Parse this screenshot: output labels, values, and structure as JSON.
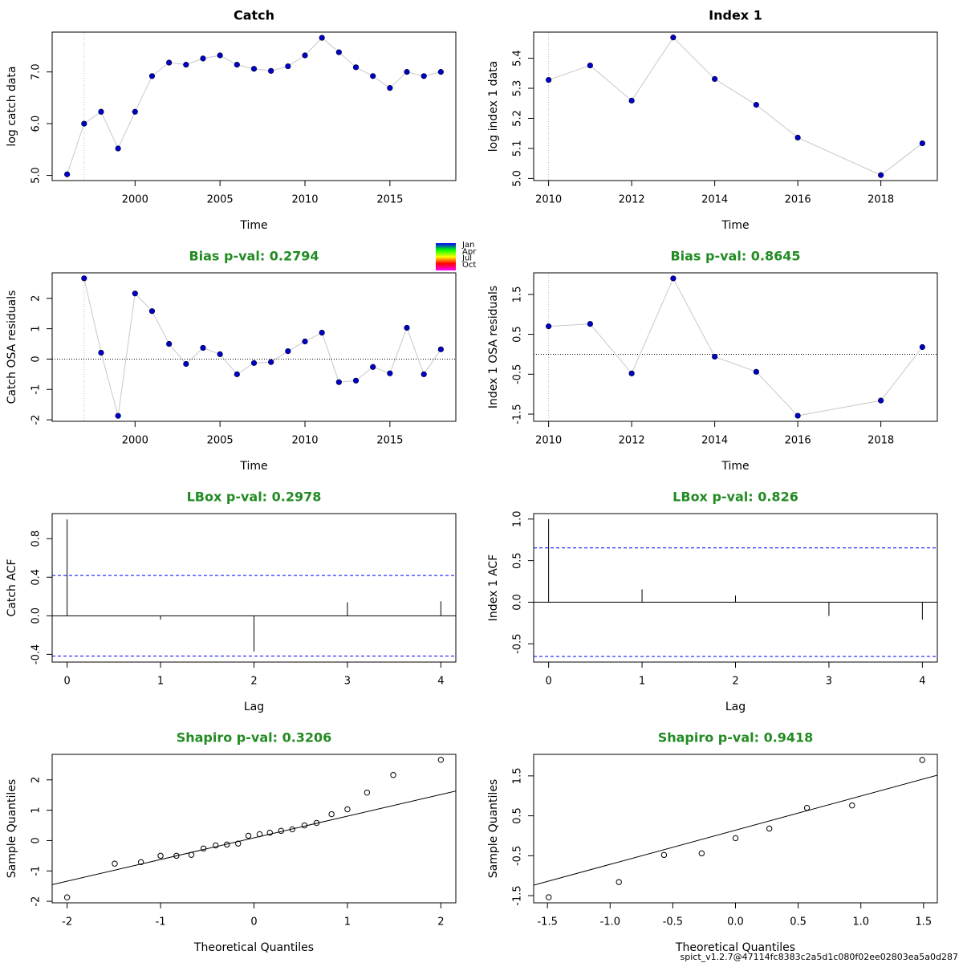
{
  "chart_data": [
    {
      "type": "line",
      "title": "Catch",
      "title_color": "#000000",
      "xlabel": "Time",
      "ylabel": "log catch data",
      "x": [
        1996,
        1997,
        1998,
        1999,
        2000,
        2001,
        2002,
        2003,
        2004,
        2005,
        2006,
        2007,
        2008,
        2009,
        2010,
        2011,
        2012,
        2013,
        2014,
        2015,
        2016,
        2017,
        2018
      ],
      "values": [
        5.02,
        6.0,
        6.23,
        5.52,
        6.23,
        6.92,
        7.18,
        7.14,
        7.26,
        7.32,
        7.14,
        7.06,
        7.02,
        7.11,
        7.32,
        7.66,
        7.38,
        7.09,
        6.92,
        6.69,
        7.0,
        6.92,
        7.0
      ],
      "color": "#0000cd",
      "line_color": "#c8c8c8",
      "vline": 1997,
      "xlim": [
        1995.12,
        2018.88
      ],
      "xticks": [
        2000,
        2005,
        2010,
        2015
      ],
      "ylim": [
        4.9,
        7.77
      ],
      "yticks": [
        {
          "value": 5,
          "label": "5.0"
        },
        {
          "value": 6,
          "label": "6.0"
        },
        {
          "value": 7,
          "label": "7.0"
        }
      ]
    },
    {
      "type": "line",
      "title": "Index 1",
      "title_color": "#000000",
      "xlabel": "Time",
      "ylabel": "log index 1 data",
      "x": [
        2010,
        2011,
        2012,
        2013,
        2014,
        2015,
        2016,
        2018,
        2019
      ],
      "values": [
        5.328,
        5.376,
        5.259,
        5.469,
        5.331,
        5.245,
        5.136,
        5.011,
        5.117
      ],
      "color": "#0000cd",
      "line_color": "#c8c8c8",
      "vline": 2010,
      "xlim": [
        2009.64,
        2019.36
      ],
      "xticks": [
        2010,
        2012,
        2014,
        2016,
        2018
      ],
      "ylim": [
        4.993,
        5.487
      ],
      "yticks": [
        {
          "value": 5,
          "label": "5.0"
        },
        5.1,
        5.2,
        5.3,
        5.4
      ]
    },
    {
      "type": "line",
      "title": "Bias p-val: 0.2794",
      "title_color": "#228b22",
      "xlabel": "Time",
      "ylabel": "Catch OSA residuals",
      "x": [
        1997,
        1998,
        1999,
        2000,
        2001,
        2002,
        2003,
        2004,
        2005,
        2006,
        2007,
        2008,
        2009,
        2010,
        2011,
        2012,
        2013,
        2014,
        2015,
        2016,
        2017,
        2018
      ],
      "values": [
        2.66,
        0.21,
        -1.87,
        2.16,
        1.58,
        0.5,
        -0.16,
        0.37,
        0.16,
        -0.5,
        -0.13,
        -0.1,
        0.26,
        0.58,
        0.87,
        -0.76,
        -0.71,
        -0.26,
        -0.47,
        1.03,
        -0.5,
        0.32
      ],
      "color": "#0000cd",
      "line_color": "#c8c8c8",
      "vline": 1997,
      "hline": 0,
      "color_key": [
        "Jan",
        "Apr",
        "Jul",
        "Oct"
      ],
      "xlim": [
        1995.12,
        2018.88
      ],
      "xticks": [
        2000,
        2005,
        2010,
        2015
      ],
      "ylim": [
        -2.05,
        2.84
      ],
      "yticks": [
        -2,
        -1,
        0,
        1,
        2
      ]
    },
    {
      "type": "line",
      "title": "Bias p-val: 0.8645",
      "title_color": "#228b22",
      "xlabel": "Time",
      "ylabel": "Index 1 OSA residuals",
      "x": [
        2010,
        2011,
        2012,
        2013,
        2014,
        2015,
        2016,
        2018,
        2019
      ],
      "values": [
        0.7,
        0.76,
        -0.48,
        1.9,
        -0.06,
        -0.44,
        -1.54,
        -1.16,
        0.18
      ],
      "color": "#0000cd",
      "line_color": "#c8c8c8",
      "vline": 2010,
      "hline": 0,
      "xlim": [
        2009.64,
        2019.36
      ],
      "xticks": [
        2010,
        2012,
        2014,
        2016,
        2018
      ],
      "ylim": [
        -1.68,
        2.04
      ],
      "yticks": [
        -1.5,
        -0.5,
        0.5,
        1.5
      ]
    },
    {
      "type": "acf",
      "title": "LBox p-val: 0.2978",
      "title_color": "#228b22",
      "xlabel": "Lag",
      "ylabel": "Catch ACF",
      "x": [
        0,
        1,
        2,
        3,
        4
      ],
      "values": [
        1.0,
        -0.04,
        -0.37,
        0.14,
        0.15
      ],
      "conf_limit": 0.418,
      "conf_color": "#0000ff",
      "xlim": [
        -0.16,
        4.16
      ],
      "xticks": [
        0,
        1,
        2,
        3,
        4
      ],
      "ylim": [
        -0.48,
        1.06
      ],
      "yticks": [
        -0.4,
        {
          "value": 0,
          "label": "0.0"
        },
        0.4,
        0.8
      ]
    },
    {
      "type": "acf",
      "title": "LBox p-val: 0.826",
      "title_color": "#228b22",
      "xlabel": "Lag",
      "ylabel": "Index 1 ACF",
      "x": [
        0,
        1,
        2,
        3,
        4
      ],
      "values": [
        1.0,
        0.155,
        0.08,
        -0.165,
        -0.21
      ],
      "conf_limit": 0.653,
      "conf_color": "#0000ff",
      "xlim": [
        -0.16,
        4.16
      ],
      "xticks": [
        0,
        1,
        2,
        3,
        4
      ],
      "ylim": [
        -0.72,
        1.066
      ],
      "yticks": [
        -0.5,
        {
          "value": 0,
          "label": "0.0"
        },
        0.5,
        {
          "value": 1,
          "label": "1.0"
        }
      ]
    },
    {
      "type": "scatter",
      "title": "Shapiro p-val: 0.3206",
      "title_color": "#228b22",
      "xlabel": "Theoretical Quantiles",
      "ylabel": "Sample Quantiles",
      "x": [
        -2.0,
        -1.49,
        -1.21,
        -1.0,
        -0.83,
        -0.67,
        -0.54,
        -0.41,
        -0.29,
        -0.17,
        -0.06,
        0.06,
        0.17,
        0.29,
        0.41,
        0.54,
        0.67,
        0.83,
        1.0,
        1.21,
        1.49,
        2.0
      ],
      "values": [
        -1.87,
        -0.76,
        -0.71,
        -0.5,
        -0.5,
        -0.47,
        -0.26,
        -0.16,
        -0.13,
        -0.1,
        0.16,
        0.21,
        0.26,
        0.32,
        0.37,
        0.5,
        0.58,
        0.87,
        1.03,
        1.58,
        2.16,
        2.66
      ],
      "qq_line": {
        "intercept": 0.09,
        "slope": 0.714
      },
      "xlim": [
        -2.16,
        2.16
      ],
      "xticks": [
        -2,
        -1,
        0,
        1,
        2
      ],
      "ylim": [
        -2.05,
        2.84
      ],
      "yticks": [
        -2,
        -1,
        0,
        1,
        2
      ]
    },
    {
      "type": "scatter",
      "title": "Shapiro p-val: 0.9418",
      "title_color": "#228b22",
      "xlabel": "Theoretical Quantiles",
      "ylabel": "Sample Quantiles",
      "x": [
        -1.49,
        -0.93,
        -0.57,
        -0.27,
        0,
        0.27,
        0.57,
        0.93,
        1.49
      ],
      "values": [
        -1.54,
        -1.16,
        -0.48,
        -0.44,
        -0.06,
        0.18,
        0.7,
        0.76,
        1.9
      ],
      "qq_line": {
        "intercept": 0.14,
        "slope": 0.856
      },
      "xlim": [
        -1.61,
        1.61
      ],
      "xticks": [
        -1.5,
        {
          "value": -1,
          "label": "-1.0"
        },
        -0.5,
        {
          "value": 0,
          "label": "0.0"
        },
        0.5,
        {
          "value": 1,
          "label": "1.0"
        },
        1.5
      ],
      "ylim": [
        -1.68,
        2.04
      ],
      "yticks": [
        -1.5,
        -0.5,
        0.5,
        1.5
      ]
    }
  ],
  "footer": "spict_v1.2.7@47114fc8383c2a5d1c080f02ee02803ea5a0d287"
}
